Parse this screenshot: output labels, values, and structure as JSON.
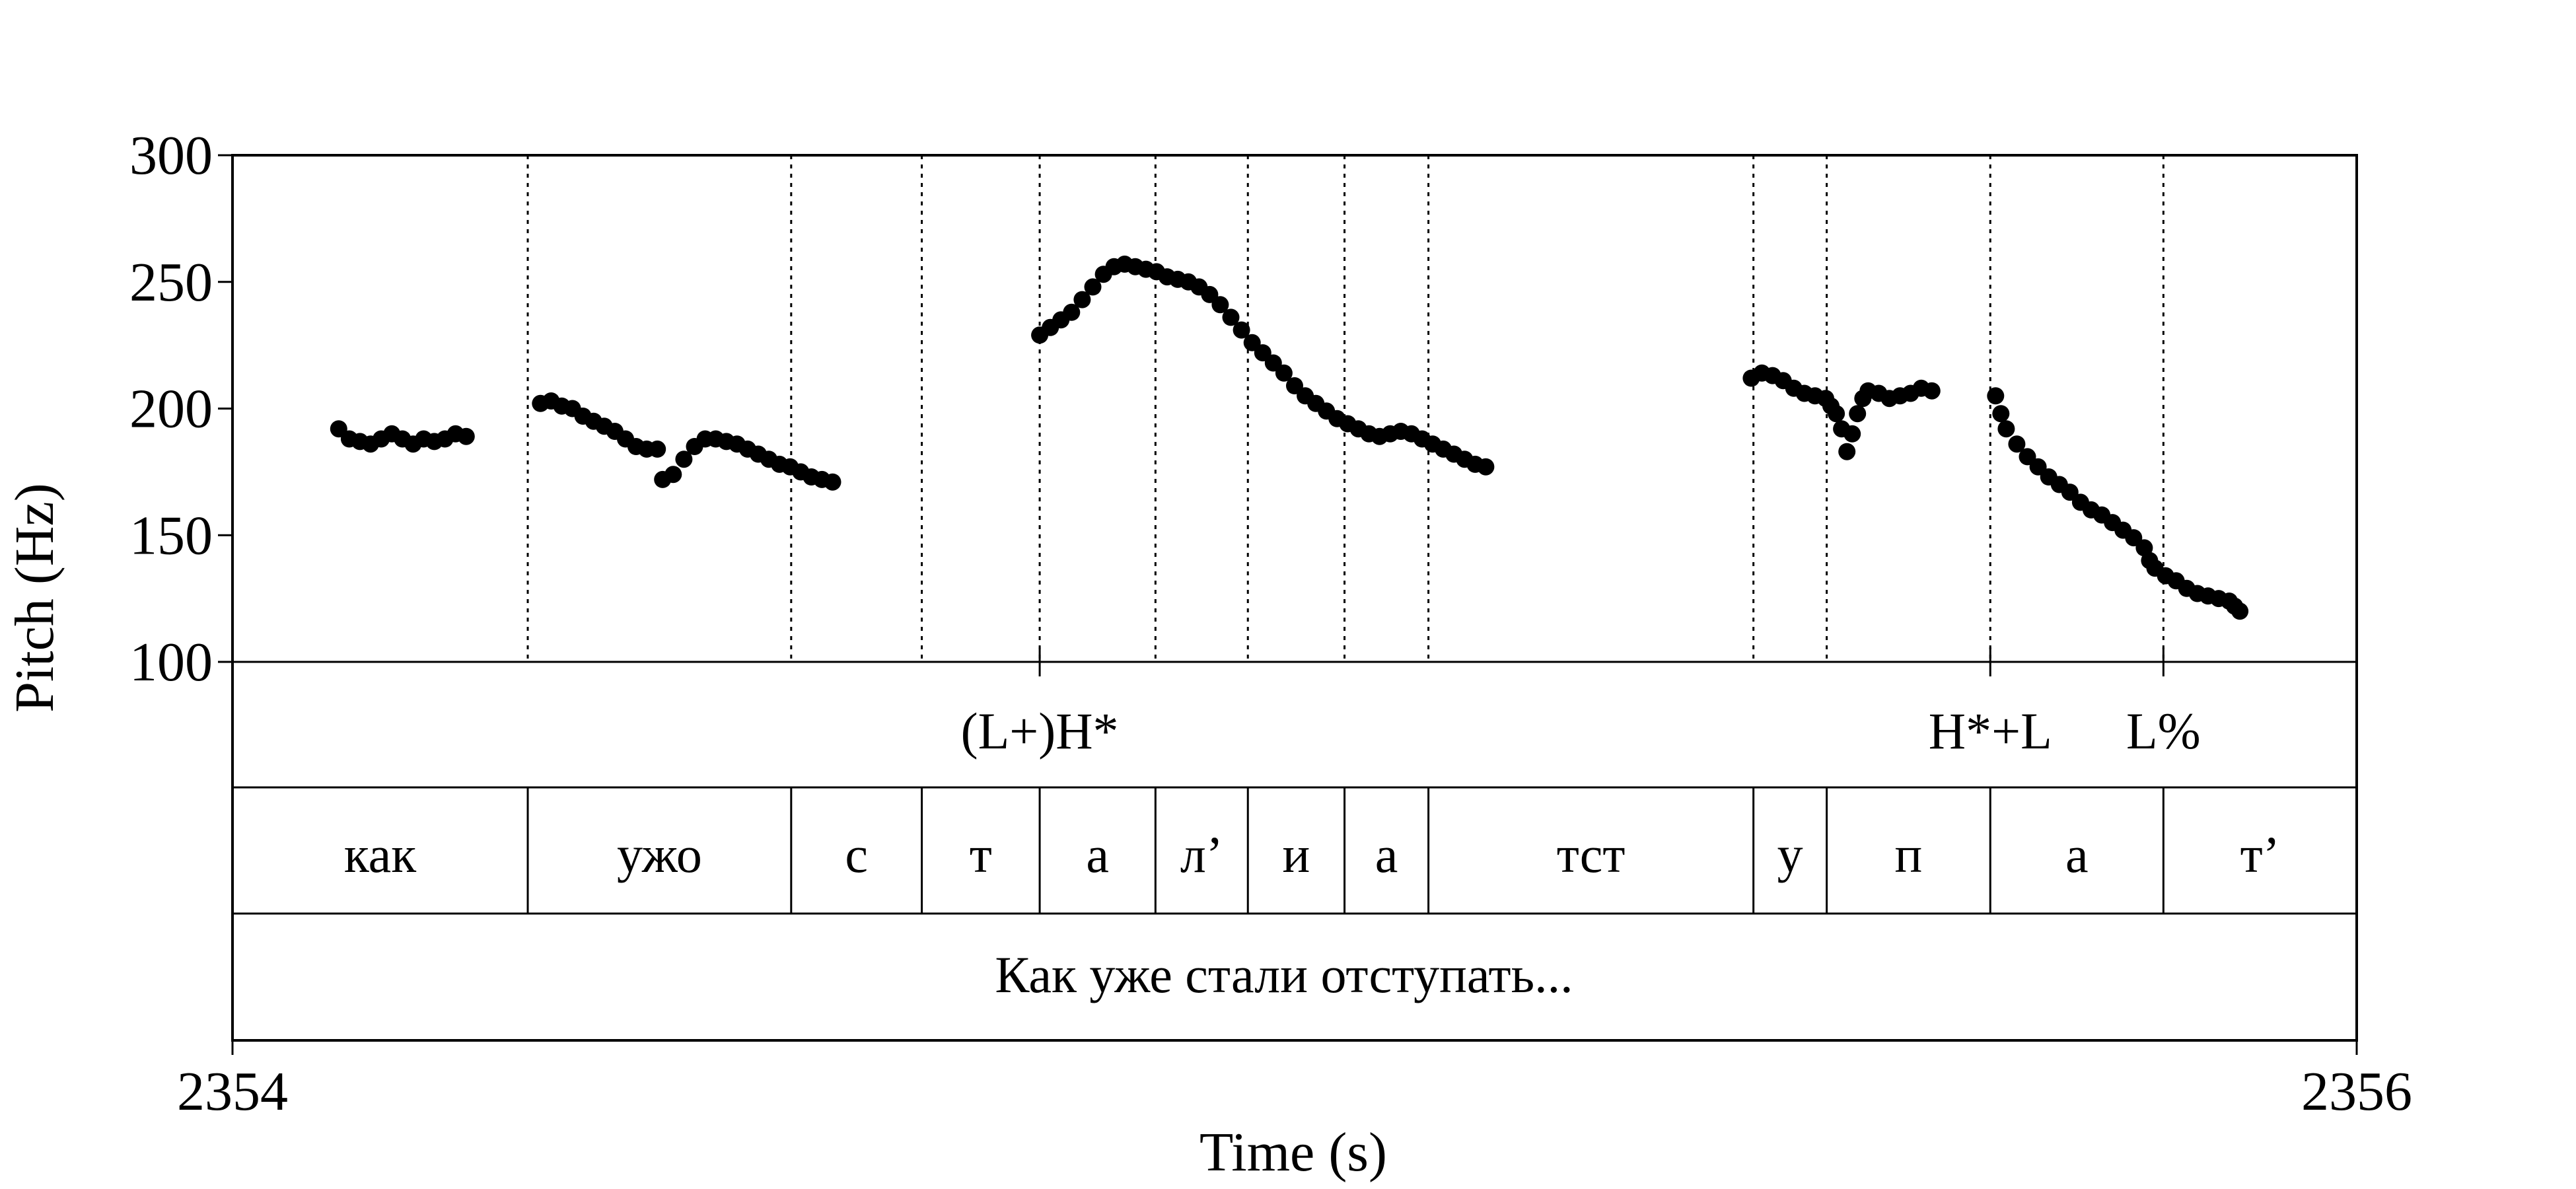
{
  "chart_data": {
    "type": "scatter",
    "title": "",
    "xlabel": "Time (s)",
    "ylabel": "Pitch (Hz)",
    "xlim": [
      2354,
      2356
    ],
    "ylim": [
      100,
      300
    ],
    "x_ticks": [
      {
        "value": 2354,
        "label": "2354"
      },
      {
        "value": 2356,
        "label": "2356"
      }
    ],
    "y_ticks": [
      {
        "value": 100,
        "label": "100"
      },
      {
        "value": 150,
        "label": "150"
      },
      {
        "value": 200,
        "label": "200"
      },
      {
        "value": 250,
        "label": "250"
      },
      {
        "value": 300,
        "label": "300"
      }
    ],
    "pitch_segments": [
      [
        [
          2354.1,
          192
        ],
        [
          2354.11,
          188
        ],
        [
          2354.12,
          187
        ],
        [
          2354.13,
          186
        ],
        [
          2354.14,
          188
        ],
        [
          2354.15,
          190
        ],
        [
          2354.16,
          188
        ],
        [
          2354.17,
          186
        ]
      ],
      [
        [
          2354.18,
          188
        ],
        [
          2354.19,
          187
        ],
        [
          2354.2,
          188
        ],
        [
          2354.21,
          190
        ],
        [
          2354.22,
          189
        ]
      ],
      [
        [
          2354.29,
          202
        ],
        [
          2354.3,
          203
        ],
        [
          2354.31,
          201
        ],
        [
          2354.32,
          200
        ],
        [
          2354.33,
          197
        ],
        [
          2354.34,
          195
        ],
        [
          2354.35,
          193
        ],
        [
          2354.36,
          191
        ],
        [
          2354.37,
          188
        ],
        [
          2354.38,
          185
        ],
        [
          2354.39,
          184
        ],
        [
          2354.4,
          184
        ]
      ],
      [
        [
          2354.405,
          172
        ],
        [
          2354.415,
          174
        ],
        [
          2354.425,
          180
        ],
        [
          2354.435,
          185
        ],
        [
          2354.445,
          188
        ],
        [
          2354.455,
          188
        ],
        [
          2354.465,
          187
        ],
        [
          2354.475,
          186
        ],
        [
          2354.485,
          184
        ],
        [
          2354.495,
          182
        ],
        [
          2354.505,
          180
        ],
        [
          2354.515,
          178
        ],
        [
          2354.525,
          177
        ],
        [
          2354.535,
          175
        ],
        [
          2354.545,
          173
        ],
        [
          2354.555,
          172
        ],
        [
          2354.565,
          171
        ]
      ],
      [
        [
          2354.76,
          229
        ],
        [
          2354.77,
          232
        ],
        [
          2354.78,
          235
        ],
        [
          2354.79,
          238
        ],
        [
          2354.8,
          243
        ],
        [
          2354.81,
          248
        ],
        [
          2354.82,
          253
        ],
        [
          2354.83,
          256
        ],
        [
          2354.84,
          257
        ],
        [
          2354.85,
          256
        ],
        [
          2354.86,
          255
        ],
        [
          2354.87,
          254
        ],
        [
          2354.88,
          252
        ],
        [
          2354.89,
          251
        ],
        [
          2354.9,
          250
        ],
        [
          2354.91,
          248
        ],
        [
          2354.92,
          245
        ],
        [
          2354.93,
          241
        ],
        [
          2354.94,
          236
        ],
        [
          2354.95,
          231
        ],
        [
          2354.96,
          226
        ],
        [
          2354.97,
          222
        ],
        [
          2354.98,
          218
        ],
        [
          2354.99,
          214
        ],
        [
          2355.0,
          209
        ],
        [
          2355.01,
          205
        ],
        [
          2355.02,
          202
        ],
        [
          2355.03,
          199
        ],
        [
          2355.04,
          196
        ],
        [
          2355.05,
          194
        ],
        [
          2355.06,
          192
        ],
        [
          2355.07,
          190
        ],
        [
          2355.08,
          189
        ],
        [
          2355.09,
          190
        ],
        [
          2355.1,
          191
        ],
        [
          2355.11,
          190
        ],
        [
          2355.12,
          188
        ],
        [
          2355.13,
          186
        ],
        [
          2355.14,
          184
        ],
        [
          2355.15,
          182
        ],
        [
          2355.16,
          180
        ],
        [
          2355.17,
          178
        ],
        [
          2355.18,
          177
        ]
      ],
      [
        [
          2355.43,
          212
        ],
        [
          2355.44,
          214
        ],
        [
          2355.45,
          213
        ],
        [
          2355.46,
          211
        ],
        [
          2355.47,
          208
        ],
        [
          2355.48,
          206
        ],
        [
          2355.49,
          205
        ],
        [
          2355.5,
          204
        ],
        [
          2355.505,
          201
        ],
        [
          2355.51,
          198
        ],
        [
          2355.515,
          192
        ],
        [
          2355.52,
          183
        ]
      ],
      [
        [
          2355.525,
          190
        ],
        [
          2355.53,
          198
        ],
        [
          2355.535,
          204
        ],
        [
          2355.54,
          207
        ],
        [
          2355.55,
          206
        ],
        [
          2355.56,
          204
        ],
        [
          2355.57,
          205
        ],
        [
          2355.58,
          206
        ],
        [
          2355.59,
          208
        ],
        [
          2355.6,
          207
        ]
      ],
      [
        [
          2355.66,
          205
        ],
        [
          2355.665,
          198
        ],
        [
          2355.67,
          192
        ],
        [
          2355.68,
          186
        ],
        [
          2355.69,
          181
        ],
        [
          2355.7,
          177
        ],
        [
          2355.71,
          173
        ],
        [
          2355.72,
          170
        ],
        [
          2355.73,
          167
        ],
        [
          2355.74,
          163
        ],
        [
          2355.75,
          160
        ],
        [
          2355.76,
          158
        ],
        [
          2355.77,
          155
        ],
        [
          2355.78,
          152
        ],
        [
          2355.79,
          149
        ],
        [
          2355.8,
          145
        ],
        [
          2355.805,
          140
        ],
        [
          2355.81,
          137
        ],
        [
          2355.82,
          134
        ],
        [
          2355.83,
          132
        ],
        [
          2355.84,
          129
        ],
        [
          2355.85,
          127
        ],
        [
          2355.86,
          126
        ],
        [
          2355.87,
          125
        ],
        [
          2355.88,
          124
        ],
        [
          2355.885,
          122
        ],
        [
          2355.89,
          120
        ]
      ]
    ],
    "boundaries": [
      2354.278,
      2354.526,
      2354.649,
      2354.76,
      2354.869,
      2354.956,
      2355.047,
      2355.126,
      2355.432,
      2355.501,
      2355.655,
      2355.818
    ],
    "tone_marks": [
      {
        "time": 2354.76,
        "label": "(L+)H*"
      },
      {
        "time": 2355.655,
        "label": "H*+L"
      },
      {
        "time": 2355.818,
        "label": "L%"
      }
    ],
    "segments": [
      {
        "start": 2354.0,
        "end": 2354.278,
        "label": "как"
      },
      {
        "start": 2354.278,
        "end": 2354.526,
        "label": "ужо"
      },
      {
        "start": 2354.526,
        "end": 2354.649,
        "label": "с"
      },
      {
        "start": 2354.649,
        "end": 2354.76,
        "label": "т"
      },
      {
        "start": 2354.76,
        "end": 2354.869,
        "label": "а"
      },
      {
        "start": 2354.869,
        "end": 2354.956,
        "label": "л’"
      },
      {
        "start": 2354.956,
        "end": 2355.047,
        "label": "и"
      },
      {
        "start": 2355.047,
        "end": 2355.126,
        "label": "а"
      },
      {
        "start": 2355.126,
        "end": 2355.432,
        "label": "тст"
      },
      {
        "start": 2355.432,
        "end": 2355.501,
        "label": "у"
      },
      {
        "start": 2355.501,
        "end": 2355.655,
        "label": "п"
      },
      {
        "start": 2355.655,
        "end": 2355.818,
        "label": "а"
      },
      {
        "start": 2355.818,
        "end": 2356.0,
        "label": "т’"
      }
    ],
    "sentence": "Как уже стали отступать..."
  }
}
